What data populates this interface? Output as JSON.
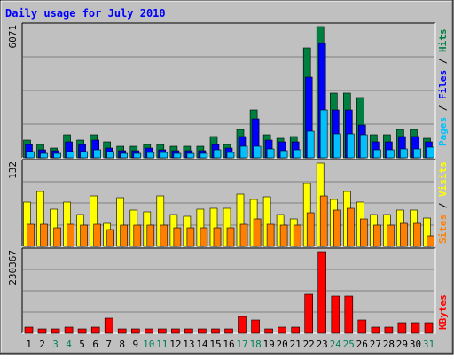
{
  "chart_data": {
    "type": "bar",
    "title": "Daily usage for July 2010",
    "categories": [
      "1",
      "2",
      "3",
      "4",
      "5",
      "6",
      "7",
      "8",
      "9",
      "10",
      "11",
      "12",
      "13",
      "14",
      "15",
      "16",
      "17",
      "18",
      "19",
      "20",
      "21",
      "22",
      "23",
      "24",
      "25",
      "26",
      "27",
      "28",
      "29",
      "30",
      "31"
    ],
    "weekend_days": [
      "3",
      "4",
      "10",
      "11",
      "17",
      "18",
      "24",
      "25",
      "31"
    ],
    "panels": [
      {
        "id": "hits_files_pages",
        "ymax_label": "6071",
        "ylim": [
          0,
          6071
        ],
        "series": [
          {
            "name": "Hits",
            "color": "#008040",
            "values": [
              812,
              600,
              452,
              1050,
              812,
              1050,
              752,
              525,
              525,
              600,
              600,
              525,
              525,
              525,
              1000,
              600,
              1300,
              2200,
              1050,
              900,
              1000,
              5100,
              6071,
              3000,
              3000,
              2800,
              1050,
              1050,
              1300,
              1300,
              900
            ]
          },
          {
            "name": "Files",
            "color": "#0000ff",
            "values": [
              600,
              375,
              338,
              750,
              600,
              825,
              450,
              338,
              338,
              450,
              375,
              338,
              338,
              338,
              600,
              450,
              1000,
              1800,
              825,
              750,
              750,
              3750,
              5300,
              2200,
              2200,
              1500,
              750,
              750,
              1000,
              1000,
              750
            ]
          },
          {
            "name": "Pages",
            "color": "#00c0ff",
            "values": [
              300,
              225,
              200,
              300,
              300,
              375,
              300,
              225,
              225,
              262,
              262,
              225,
              225,
              225,
              375,
              262,
              525,
              525,
              412,
              338,
              375,
              1250,
              2200,
              1125,
              1125,
              1050,
              375,
              375,
              412,
              412,
              488
            ]
          }
        ]
      },
      {
        "id": "visits_sites",
        "ymax_label": "132",
        "ylim": [
          0,
          132
        ],
        "series": [
          {
            "name": "Visits",
            "color": "#ffff00",
            "values": [
              70,
              87,
              59,
              70,
              50,
              80,
              36,
              77,
              57,
              55,
              80,
              50,
              48,
              59,
              60,
              60,
              83,
              75,
              79,
              51,
              44,
              100,
              132,
              75,
              87,
              70,
              50,
              50,
              57,
              57,
              45
            ]
          },
          {
            "name": "Sites",
            "color": "#ff8000",
            "values": [
              35,
              35,
              30,
              35,
              33,
              35,
              27,
              33,
              33,
              33,
              33,
              30,
              30,
              30,
              30,
              30,
              35,
              43,
              35,
              33,
              33,
              53,
              80,
              58,
              60,
              43,
              33,
              33,
              37,
              37,
              17
            ]
          }
        ]
      },
      {
        "id": "kbytes",
        "ymax_label": "230367",
        "ylim": [
          0,
          230367
        ],
        "series": [
          {
            "name": "KBytes",
            "color": "#ff0000",
            "values": [
              18000,
              12000,
              12000,
              18000,
              12000,
              18000,
              42000,
              12000,
              12000,
              12000,
              12000,
              12000,
              12000,
              12000,
              12000,
              12000,
              48000,
              37000,
              12000,
              18000,
              18000,
              110000,
              230367,
              105000,
              105000,
              37000,
              18000,
              18000,
              31000,
              31000,
              31000
            ]
          }
        ]
      }
    ],
    "legend_right": [
      {
        "items": [
          "Pages",
          "Files",
          "Hits"
        ],
        "colors": [
          "#00c0ff",
          "#0000ff",
          "#008040"
        ],
        "sep": " / "
      },
      {
        "items": [
          "Sites",
          "Visits"
        ],
        "colors": [
          "#ff8000",
          "#ffff00"
        ],
        "sep": " / "
      },
      {
        "items": [
          "KBytes"
        ],
        "colors": [
          "#ff0000"
        ],
        "sep": ""
      }
    ],
    "colors": {
      "background": "#c0c0c0",
      "plot": "#c0c0c0",
      "grid": "#808080",
      "weekday_label": "#000000",
      "weekend_label": "#00805c",
      "title": "#0000ff"
    },
    "grid": true
  }
}
